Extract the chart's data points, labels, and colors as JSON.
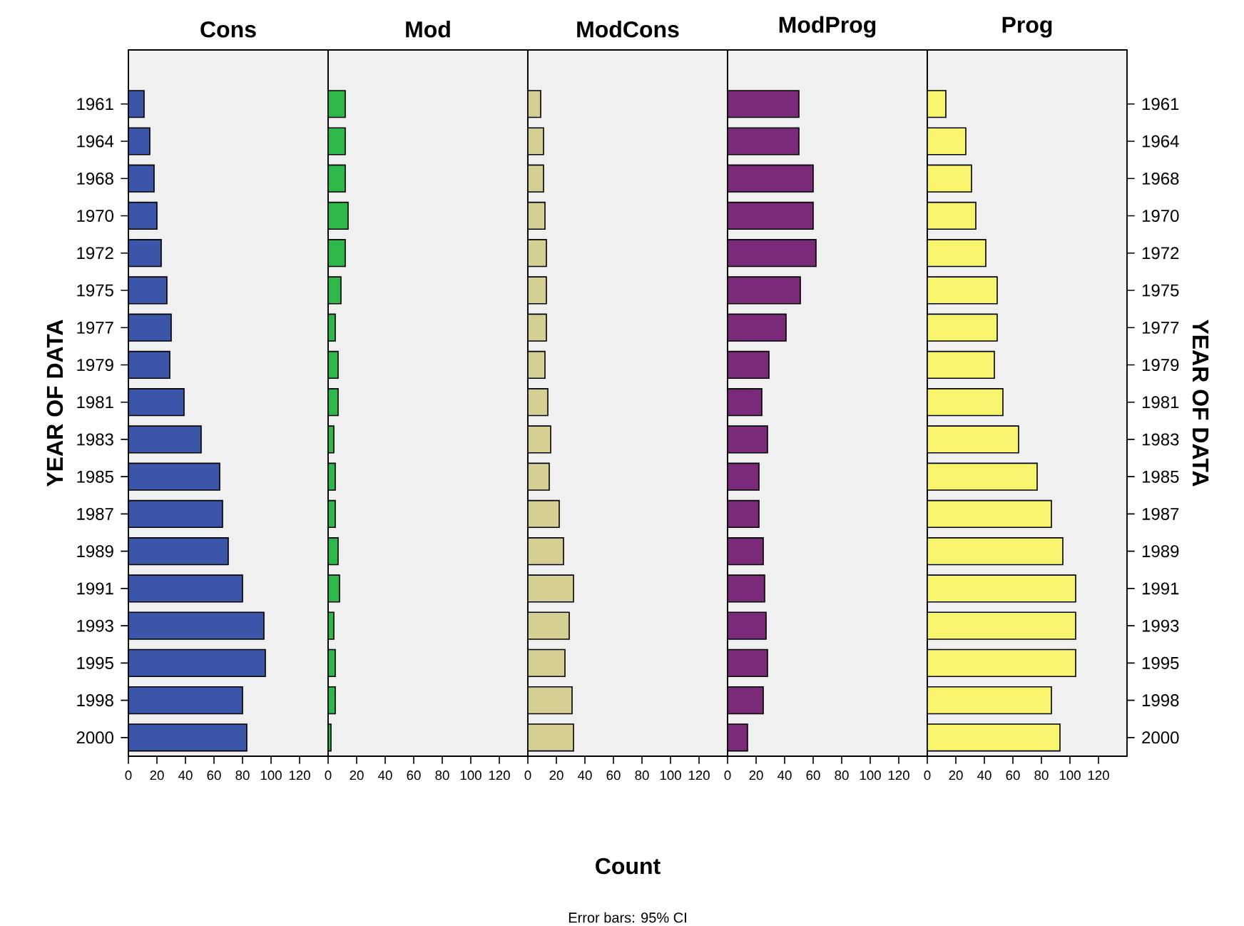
{
  "chart_data": [
    {
      "type": "bar",
      "orientation": "horizontal",
      "title": "Cons",
      "ylabel": "YEAR OF DATA",
      "categories": [
        "1961",
        "1964",
        "1968",
        "1970",
        "1972",
        "1975",
        "1977",
        "1979",
        "1981",
        "1983",
        "1985",
        "1987",
        "1989",
        "1991",
        "1993",
        "1995",
        "1998",
        "2000"
      ],
      "values": [
        11,
        15,
        18,
        20,
        23,
        27,
        30,
        29,
        39,
        51,
        64,
        66,
        70,
        80,
        95,
        96,
        80,
        83
      ],
      "color": "#3b56a8",
      "xlim": [
        0,
        140
      ],
      "xticks": [
        0,
        20,
        40,
        60,
        80,
        100,
        120
      ]
    },
    {
      "type": "bar",
      "orientation": "horizontal",
      "title": "Mod",
      "categories": [
        "1961",
        "1964",
        "1968",
        "1970",
        "1972",
        "1975",
        "1977",
        "1979",
        "1981",
        "1983",
        "1985",
        "1987",
        "1989",
        "1991",
        "1993",
        "1995",
        "1998",
        "2000"
      ],
      "values": [
        12,
        12,
        12,
        14,
        12,
        9,
        5,
        7,
        7,
        4,
        5,
        5,
        7,
        8,
        4,
        5,
        5,
        2
      ],
      "color": "#2fb84a",
      "xlim": [
        0,
        140
      ],
      "xticks": [
        0,
        20,
        40,
        60,
        80,
        100,
        120
      ],
      "tick_labels": "x"
    },
    {
      "type": "bar",
      "orientation": "horizontal",
      "title": "ModCons",
      "xlabel": "Count",
      "annotations": [
        "Error bars: 95% CI"
      ],
      "categories": [
        "1961",
        "1964",
        "1968",
        "1970",
        "1972",
        "1975",
        "1977",
        "1979",
        "1981",
        "1983",
        "1985",
        "1987",
        "1989",
        "1991",
        "1993",
        "1995",
        "1998",
        "2000"
      ],
      "values": [
        9,
        11,
        11,
        12,
        13,
        13,
        13,
        12,
        14,
        16,
        15,
        22,
        25,
        32,
        29,
        26,
        31,
        32
      ],
      "color": "#d6cf94",
      "xlim": [
        0,
        140
      ],
      "xticks": [
        0,
        20,
        40,
        60,
        80,
        100,
        120
      ],
      "tick_labels": "x"
    },
    {
      "type": "bar",
      "orientation": "horizontal",
      "title": "ModProg",
      "categories": [
        "1961",
        "1964",
        "1968",
        "1970",
        "1972",
        "1975",
        "1977",
        "1979",
        "1981",
        "1983",
        "1985",
        "1987",
        "1989",
        "1991",
        "1993",
        "1995",
        "1998",
        "2000"
      ],
      "values": [
        50,
        50,
        60,
        60,
        62,
        51,
        41,
        29,
        24,
        28,
        22,
        22,
        25,
        26,
        27,
        28,
        25,
        14
      ],
      "color": "#7b2a7a",
      "xlim": [
        0,
        140
      ],
      "xticks": [
        0,
        20,
        40,
        60,
        80,
        100,
        120
      ],
      "tick_labels": "x"
    },
    {
      "type": "bar",
      "orientation": "horizontal",
      "title": "Prog",
      "ylabel": "YEAR OF DATA",
      "categories": [
        "1961",
        "1964",
        "1968",
        "1970",
        "1972",
        "1975",
        "1977",
        "1979",
        "1981",
        "1983",
        "1985",
        "1987",
        "1989",
        "1991",
        "1993",
        "1995",
        "1998",
        "2000"
      ],
      "values": [
        13,
        27,
        31,
        34,
        41,
        49,
        49,
        47,
        53,
        64,
        77,
        87,
        95,
        104,
        104,
        104,
        87,
        93
      ],
      "color": "#f8f46e",
      "xlim": [
        0,
        140
      ],
      "xticks": [
        0,
        20,
        40,
        60,
        80,
        100,
        120
      ]
    }
  ]
}
